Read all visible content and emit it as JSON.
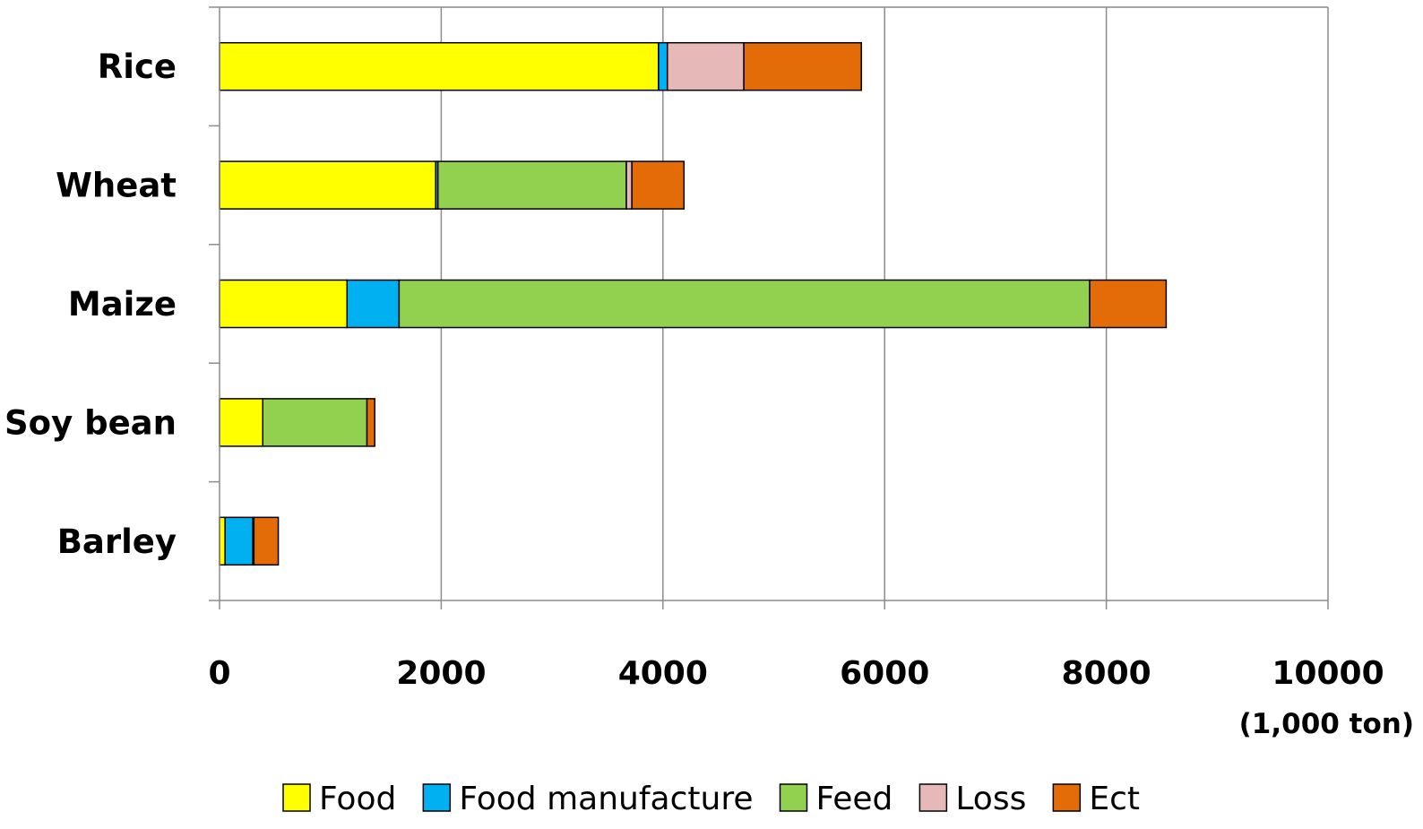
{
  "chart_data": {
    "type": "bar",
    "orientation": "horizontal",
    "stacked": true,
    "categories": [
      "Rice",
      "Wheat",
      "Maize",
      "Soy bean",
      "Barley"
    ],
    "series": [
      {
        "name": "Food",
        "color": "#FFFF00",
        "values": [
          3960,
          1950,
          1150,
          390,
          50
        ]
      },
      {
        "name": "Food manufacture",
        "color": "#00B0F0",
        "values": [
          80,
          20,
          470,
          0,
          250
        ]
      },
      {
        "name": "Feed",
        "color": "#92D050",
        "values": [
          0,
          1700,
          6230,
          940,
          0
        ]
      },
      {
        "name": "Loss",
        "color": "#E6B9B8",
        "values": [
          690,
          50,
          0,
          0,
          10
        ]
      },
      {
        "name": "Ect",
        "color": "#E36C09",
        "values": [
          1060,
          470,
          690,
          70,
          220
        ]
      }
    ],
    "xticks": [
      "0",
      "2000",
      "4000",
      "6000",
      "8000",
      "10000"
    ],
    "xlim": [
      0,
      10000
    ],
    "unit_label": "(1,000 ton)",
    "grid": true,
    "legend_position": "bottom"
  }
}
